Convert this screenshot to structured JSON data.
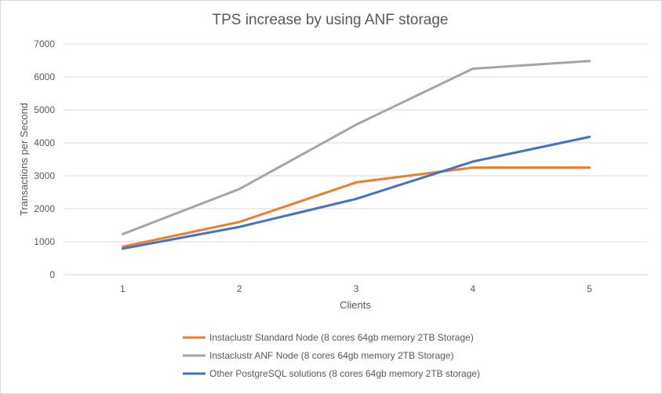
{
  "chart_data": {
    "type": "line",
    "title": "TPS increase by using ANF storage",
    "xlabel": "Clients",
    "ylabel": "Transactions per Second",
    "x": [
      1,
      2,
      3,
      4,
      5
    ],
    "x_tick_labels": [
      "1",
      "2",
      "3",
      "4",
      "5"
    ],
    "ylim": [
      0,
      7000
    ],
    "y_tick_labels": [
      "0",
      "1000",
      "2000",
      "3000",
      "4000",
      "5000",
      "6000",
      "7000"
    ],
    "grid": true,
    "legend_position": "bottom",
    "series": [
      {
        "name": "Instaclustr Standard Node (8 cores 64gb memory 2TB Storage)",
        "color": "#ed7d31",
        "values": [
          850,
          1600,
          2800,
          3250,
          3250
        ]
      },
      {
        "name": "Instaclustr ANF Node (8 cores 64gb memory 2TB Storage)",
        "color": "#a5a5a5",
        "values": [
          1230,
          2600,
          4550,
          6250,
          6480
        ]
      },
      {
        "name": "Other PostgreSQL solutions (8 cores 64gb memory 2TB storage)",
        "color": "#4472c4",
        "values": [
          790,
          1450,
          2300,
          3430,
          4180
        ]
      }
    ]
  }
}
